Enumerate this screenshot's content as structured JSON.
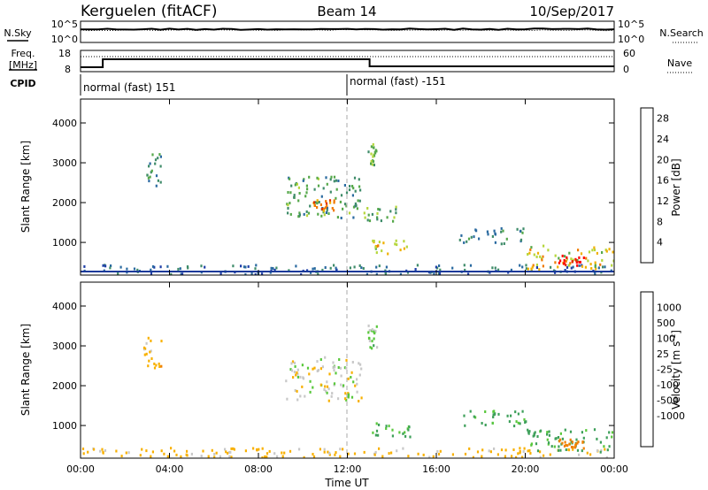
{
  "header": {
    "station": "Kerguelen (fitACF)",
    "beam": "Beam 14",
    "date": "10/Sep/2017"
  },
  "labels": {
    "nsky": "N.Sky",
    "nsearch": "N.Search",
    "freq_line1": "Freq.",
    "freq_line2": "[MHz]",
    "nave": "Nave",
    "cpid": "CPID",
    "slant_range": "Slant Range [km]",
    "time_ut": "Time UT",
    "power": "Power [dB]",
    "velocity_main": "Velocity [m s",
    "velocity_sup": "-1",
    "velocity_close": "]"
  },
  "noise_panel": {
    "left_ticks": [
      "10^5",
      "10^0"
    ],
    "right_ticks": [
      "10^5",
      "10^0"
    ]
  },
  "freq_panel": {
    "left_ticks": [
      "18",
      "8"
    ],
    "right_ticks": [
      "60",
      "0"
    ]
  },
  "cpid": {
    "first": "normal (fast) 151",
    "second": "normal (fast) -151"
  },
  "colors": {
    "power": [
      "#0000ff",
      "#1f3fa8",
      "#2a6aa0",
      "#3f8c6a",
      "#55a84a",
      "#b5d63b",
      "#f0b000",
      "#f07a00",
      "#e03000",
      "#ff0000"
    ],
    "velocity": [
      "#ff0000",
      "#e84000",
      "#f08000",
      "#f8b000",
      "#c8c8c8",
      "#c8c8c8",
      "#59c83c",
      "#3ea05a",
      "#2d5aa8",
      "#1030c0"
    ],
    "ground_scatter": "#b8b8b8"
  },
  "chart_data": [
    {
      "type": "heatmap",
      "title": "",
      "xlabel": "",
      "ylabel": "Slant Range [km]",
      "x_ticks": [
        "00:00",
        "04:00",
        "08:00",
        "12:00",
        "16:00",
        "20:00",
        "00:00"
      ],
      "y_ticks": [
        "1000",
        "2000",
        "3000",
        "4000"
      ],
      "xlim_hours": [
        0,
        24
      ],
      "ylim_km": [
        180,
        4600
      ],
      "colorbar_label": "Power [dB]",
      "colorbar_ticks": [
        "4",
        "8",
        "12",
        "16",
        "20",
        "24",
        "28"
      ],
      "colorbar_range": [
        0,
        30
      ],
      "regions": [
        {
          "t0": 0.0,
          "t1": 24.0,
          "r0": 180,
          "r1": 420,
          "value": 8
        },
        {
          "t0": 2.8,
          "t1": 3.6,
          "r0": 2400,
          "r1": 3200,
          "value": 10
        },
        {
          "t0": 9.2,
          "t1": 12.6,
          "r0": 1600,
          "r1": 2700,
          "value": 12
        },
        {
          "t0": 10.4,
          "t1": 11.4,
          "r0": 1750,
          "r1": 2050,
          "value": 22
        },
        {
          "t0": 12.9,
          "t1": 13.3,
          "r0": 2900,
          "r1": 3500,
          "value": 14
        },
        {
          "t0": 13.1,
          "t1": 14.8,
          "r0": 700,
          "r1": 1050,
          "value": 18
        },
        {
          "t0": 12.6,
          "t1": 14.2,
          "r0": 1500,
          "r1": 1900,
          "value": 12
        },
        {
          "t0": 17.0,
          "t1": 20.0,
          "r0": 950,
          "r1": 1350,
          "value": 10
        },
        {
          "t0": 20.0,
          "t1": 24.0,
          "r0": 300,
          "r1": 900,
          "value": 18
        },
        {
          "t0": 21.4,
          "t1": 22.6,
          "r0": 400,
          "r1": 650,
          "value": 27
        }
      ]
    },
    {
      "type": "heatmap",
      "title": "",
      "xlabel": "Time UT",
      "ylabel": "Slant Range [km]",
      "x_ticks": [
        "00:00",
        "04:00",
        "08:00",
        "12:00",
        "16:00",
        "20:00",
        "00:00"
      ],
      "y_ticks": [
        "1000",
        "2000",
        "3000",
        "4000"
      ],
      "xlim_hours": [
        0,
        24
      ],
      "ylim_km": [
        180,
        4600
      ],
      "colorbar_label": "Velocity [m s-1]",
      "colorbar_ticks": [
        "1000",
        "500",
        "100",
        "25",
        "-25",
        "-100",
        "-500",
        "-1000"
      ],
      "colorbar_range": [
        -1000,
        1000
      ],
      "regions": [
        {
          "t0": 0.0,
          "t1": 24.0,
          "r0": 180,
          "r1": 420,
          "value": -50
        },
        {
          "t0": 2.8,
          "t1": 3.6,
          "r0": 2400,
          "r1": 3200,
          "value": -60
        },
        {
          "t0": 9.2,
          "t1": 12.6,
          "r0": 1600,
          "r1": 2700,
          "value": 0
        },
        {
          "t0": 12.9,
          "t1": 13.3,
          "r0": 2900,
          "r1": 3500,
          "value": 60
        },
        {
          "t0": 13.1,
          "t1": 14.8,
          "r0": 700,
          "r1": 1050,
          "value": 80
        },
        {
          "t0": 17.0,
          "t1": 20.0,
          "r0": 950,
          "r1": 1350,
          "value": 120
        },
        {
          "t0": 20.0,
          "t1": 24.0,
          "r0": 300,
          "r1": 900,
          "value": 110
        },
        {
          "t0": 21.4,
          "t1": 22.6,
          "r0": 400,
          "r1": 650,
          "value": -200
        }
      ]
    }
  ]
}
